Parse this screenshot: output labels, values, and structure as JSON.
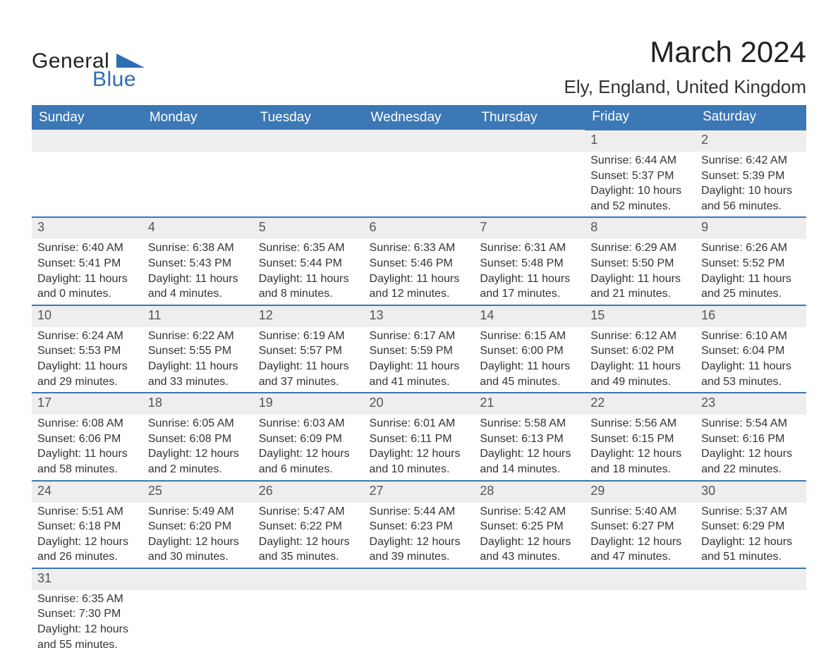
{
  "brand": {
    "word1": "General",
    "word2": "Blue"
  },
  "title": "March 2024",
  "location": "Ely, England, United Kingdom",
  "colors": {
    "header_bg": "#3b78b5",
    "header_text": "#ffffff",
    "daynum_bg": "#eeeeee",
    "daynum_text": "#555555",
    "body_text": "#333333",
    "rule": "#3b78b5",
    "brand_accent": "#2f6db2"
  },
  "typography": {
    "title_fontsize": 42,
    "location_fontsize": 26,
    "header_fontsize": 19,
    "daynum_fontsize": 18,
    "detail_fontsize": 16
  },
  "weekdays": [
    "Sunday",
    "Monday",
    "Tuesday",
    "Wednesday",
    "Thursday",
    "Friday",
    "Saturday"
  ],
  "weeks": [
    [
      null,
      null,
      null,
      null,
      null,
      {
        "n": "1",
        "sunrise": "Sunrise: 6:44 AM",
        "sunset": "Sunset: 5:37 PM",
        "day_a": "Daylight: 10 hours",
        "day_b": "and 52 minutes."
      },
      {
        "n": "2",
        "sunrise": "Sunrise: 6:42 AM",
        "sunset": "Sunset: 5:39 PM",
        "day_a": "Daylight: 10 hours",
        "day_b": "and 56 minutes."
      }
    ],
    [
      {
        "n": "3",
        "sunrise": "Sunrise: 6:40 AM",
        "sunset": "Sunset: 5:41 PM",
        "day_a": "Daylight: 11 hours",
        "day_b": "and 0 minutes."
      },
      {
        "n": "4",
        "sunrise": "Sunrise: 6:38 AM",
        "sunset": "Sunset: 5:43 PM",
        "day_a": "Daylight: 11 hours",
        "day_b": "and 4 minutes."
      },
      {
        "n": "5",
        "sunrise": "Sunrise: 6:35 AM",
        "sunset": "Sunset: 5:44 PM",
        "day_a": "Daylight: 11 hours",
        "day_b": "and 8 minutes."
      },
      {
        "n": "6",
        "sunrise": "Sunrise: 6:33 AM",
        "sunset": "Sunset: 5:46 PM",
        "day_a": "Daylight: 11 hours",
        "day_b": "and 12 minutes."
      },
      {
        "n": "7",
        "sunrise": "Sunrise: 6:31 AM",
        "sunset": "Sunset: 5:48 PM",
        "day_a": "Daylight: 11 hours",
        "day_b": "and 17 minutes."
      },
      {
        "n": "8",
        "sunrise": "Sunrise: 6:29 AM",
        "sunset": "Sunset: 5:50 PM",
        "day_a": "Daylight: 11 hours",
        "day_b": "and 21 minutes."
      },
      {
        "n": "9",
        "sunrise": "Sunrise: 6:26 AM",
        "sunset": "Sunset: 5:52 PM",
        "day_a": "Daylight: 11 hours",
        "day_b": "and 25 minutes."
      }
    ],
    [
      {
        "n": "10",
        "sunrise": "Sunrise: 6:24 AM",
        "sunset": "Sunset: 5:53 PM",
        "day_a": "Daylight: 11 hours",
        "day_b": "and 29 minutes."
      },
      {
        "n": "11",
        "sunrise": "Sunrise: 6:22 AM",
        "sunset": "Sunset: 5:55 PM",
        "day_a": "Daylight: 11 hours",
        "day_b": "and 33 minutes."
      },
      {
        "n": "12",
        "sunrise": "Sunrise: 6:19 AM",
        "sunset": "Sunset: 5:57 PM",
        "day_a": "Daylight: 11 hours",
        "day_b": "and 37 minutes."
      },
      {
        "n": "13",
        "sunrise": "Sunrise: 6:17 AM",
        "sunset": "Sunset: 5:59 PM",
        "day_a": "Daylight: 11 hours",
        "day_b": "and 41 minutes."
      },
      {
        "n": "14",
        "sunrise": "Sunrise: 6:15 AM",
        "sunset": "Sunset: 6:00 PM",
        "day_a": "Daylight: 11 hours",
        "day_b": "and 45 minutes."
      },
      {
        "n": "15",
        "sunrise": "Sunrise: 6:12 AM",
        "sunset": "Sunset: 6:02 PM",
        "day_a": "Daylight: 11 hours",
        "day_b": "and 49 minutes."
      },
      {
        "n": "16",
        "sunrise": "Sunrise: 6:10 AM",
        "sunset": "Sunset: 6:04 PM",
        "day_a": "Daylight: 11 hours",
        "day_b": "and 53 minutes."
      }
    ],
    [
      {
        "n": "17",
        "sunrise": "Sunrise: 6:08 AM",
        "sunset": "Sunset: 6:06 PM",
        "day_a": "Daylight: 11 hours",
        "day_b": "and 58 minutes."
      },
      {
        "n": "18",
        "sunrise": "Sunrise: 6:05 AM",
        "sunset": "Sunset: 6:08 PM",
        "day_a": "Daylight: 12 hours",
        "day_b": "and 2 minutes."
      },
      {
        "n": "19",
        "sunrise": "Sunrise: 6:03 AM",
        "sunset": "Sunset: 6:09 PM",
        "day_a": "Daylight: 12 hours",
        "day_b": "and 6 minutes."
      },
      {
        "n": "20",
        "sunrise": "Sunrise: 6:01 AM",
        "sunset": "Sunset: 6:11 PM",
        "day_a": "Daylight: 12 hours",
        "day_b": "and 10 minutes."
      },
      {
        "n": "21",
        "sunrise": "Sunrise: 5:58 AM",
        "sunset": "Sunset: 6:13 PM",
        "day_a": "Daylight: 12 hours",
        "day_b": "and 14 minutes."
      },
      {
        "n": "22",
        "sunrise": "Sunrise: 5:56 AM",
        "sunset": "Sunset: 6:15 PM",
        "day_a": "Daylight: 12 hours",
        "day_b": "and 18 minutes."
      },
      {
        "n": "23",
        "sunrise": "Sunrise: 5:54 AM",
        "sunset": "Sunset: 6:16 PM",
        "day_a": "Daylight: 12 hours",
        "day_b": "and 22 minutes."
      }
    ],
    [
      {
        "n": "24",
        "sunrise": "Sunrise: 5:51 AM",
        "sunset": "Sunset: 6:18 PM",
        "day_a": "Daylight: 12 hours",
        "day_b": "and 26 minutes."
      },
      {
        "n": "25",
        "sunrise": "Sunrise: 5:49 AM",
        "sunset": "Sunset: 6:20 PM",
        "day_a": "Daylight: 12 hours",
        "day_b": "and 30 minutes."
      },
      {
        "n": "26",
        "sunrise": "Sunrise: 5:47 AM",
        "sunset": "Sunset: 6:22 PM",
        "day_a": "Daylight: 12 hours",
        "day_b": "and 35 minutes."
      },
      {
        "n": "27",
        "sunrise": "Sunrise: 5:44 AM",
        "sunset": "Sunset: 6:23 PM",
        "day_a": "Daylight: 12 hours",
        "day_b": "and 39 minutes."
      },
      {
        "n": "28",
        "sunrise": "Sunrise: 5:42 AM",
        "sunset": "Sunset: 6:25 PM",
        "day_a": "Daylight: 12 hours",
        "day_b": "and 43 minutes."
      },
      {
        "n": "29",
        "sunrise": "Sunrise: 5:40 AM",
        "sunset": "Sunset: 6:27 PM",
        "day_a": "Daylight: 12 hours",
        "day_b": "and 47 minutes."
      },
      {
        "n": "30",
        "sunrise": "Sunrise: 5:37 AM",
        "sunset": "Sunset: 6:29 PM",
        "day_a": "Daylight: 12 hours",
        "day_b": "and 51 minutes."
      }
    ],
    [
      {
        "n": "31",
        "sunrise": "Sunrise: 6:35 AM",
        "sunset": "Sunset: 7:30 PM",
        "day_a": "Daylight: 12 hours",
        "day_b": "and 55 minutes."
      },
      null,
      null,
      null,
      null,
      null,
      null
    ]
  ]
}
